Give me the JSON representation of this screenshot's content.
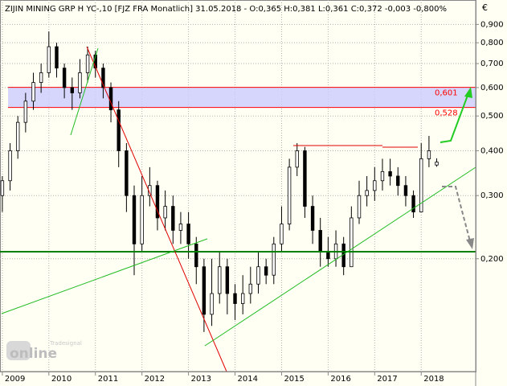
{
  "chart_data": {
    "type": "candlestick",
    "title": "ZIJIN MINING GRP H YC-,10 [FJZ FRA  Monatlich] 31.05.2018 - O:0,365 H:0,381 L:0,361 C:0,372 -0,003 -0,800%",
    "y_unit": "€",
    "log_scale": true,
    "grid": true,
    "up_color": "#ffffff",
    "down_color": "#000000",
    "x": [
      2009.0,
      2009.167,
      2009.333,
      2009.5,
      2009.667,
      2009.833,
      2010.0,
      2010.167,
      2010.333,
      2010.5,
      2010.667,
      2010.833,
      2011.0,
      2011.167,
      2011.333,
      2011.5,
      2011.667,
      2011.833,
      2012.0,
      2012.167,
      2012.333,
      2012.5,
      2012.667,
      2012.833,
      2013.0,
      2013.167,
      2013.333,
      2013.5,
      2013.667,
      2013.833,
      2014.0,
      2014.167,
      2014.333,
      2014.5,
      2014.667,
      2014.833,
      2015.0,
      2015.167,
      2015.333,
      2015.5,
      2015.667,
      2015.833,
      2016.0,
      2016.167,
      2016.333,
      2016.5,
      2016.667,
      2016.833,
      2017.0,
      2017.167,
      2017.333,
      2017.5,
      2017.667,
      2017.833,
      2018.0,
      2018.167,
      2018.333
    ],
    "open": [
      0.3,
      0.33,
      0.4,
      0.48,
      0.55,
      0.62,
      0.66,
      0.78,
      0.68,
      0.6,
      0.58,
      0.66,
      0.74,
      0.68,
      0.6,
      0.52,
      0.4,
      0.3,
      0.22,
      0.3,
      0.32,
      0.26,
      0.28,
      0.24,
      0.25,
      0.22,
      0.19,
      0.14,
      0.16,
      0.19,
      0.16,
      0.15,
      0.16,
      0.17,
      0.19,
      0.18,
      0.22,
      0.25,
      0.36,
      0.4,
      0.28,
      0.24,
      0.21,
      0.2,
      0.22,
      0.19,
      0.26,
      0.3,
      0.31,
      0.33,
      0.35,
      0.34,
      0.32,
      0.3,
      0.27,
      0.38,
      0.365
    ],
    "high": [
      0.34,
      0.42,
      0.5,
      0.58,
      0.66,
      0.7,
      0.86,
      0.8,
      0.7,
      0.64,
      0.72,
      0.78,
      0.76,
      0.7,
      0.62,
      0.55,
      0.42,
      0.32,
      0.34,
      0.36,
      0.33,
      0.31,
      0.3,
      0.27,
      0.27,
      0.23,
      0.2,
      0.2,
      0.21,
      0.2,
      0.17,
      0.18,
      0.19,
      0.21,
      0.2,
      0.23,
      0.28,
      0.38,
      0.42,
      0.41,
      0.3,
      0.26,
      0.23,
      0.24,
      0.23,
      0.28,
      0.33,
      0.34,
      0.36,
      0.38,
      0.38,
      0.36,
      0.34,
      0.31,
      0.42,
      0.44,
      0.381
    ],
    "low": [
      0.27,
      0.31,
      0.38,
      0.45,
      0.52,
      0.58,
      0.64,
      0.64,
      0.56,
      0.52,
      0.56,
      0.62,
      0.64,
      0.56,
      0.48,
      0.36,
      0.27,
      0.18,
      0.21,
      0.28,
      0.24,
      0.24,
      0.22,
      0.22,
      0.2,
      0.17,
      0.125,
      0.13,
      0.15,
      0.14,
      0.135,
      0.14,
      0.15,
      0.16,
      0.17,
      0.17,
      0.21,
      0.24,
      0.34,
      0.26,
      0.22,
      0.19,
      0.19,
      0.19,
      0.18,
      0.19,
      0.25,
      0.28,
      0.29,
      0.31,
      0.32,
      0.3,
      0.28,
      0.26,
      0.27,
      0.36,
      0.361
    ],
    "close": [
      0.33,
      0.4,
      0.48,
      0.55,
      0.62,
      0.66,
      0.78,
      0.68,
      0.6,
      0.58,
      0.66,
      0.74,
      0.68,
      0.6,
      0.52,
      0.4,
      0.3,
      0.22,
      0.3,
      0.32,
      0.26,
      0.28,
      0.24,
      0.25,
      0.22,
      0.19,
      0.14,
      0.16,
      0.19,
      0.16,
      0.15,
      0.16,
      0.17,
      0.19,
      0.18,
      0.22,
      0.25,
      0.36,
      0.4,
      0.28,
      0.24,
      0.21,
      0.2,
      0.22,
      0.19,
      0.26,
      0.3,
      0.31,
      0.33,
      0.35,
      0.34,
      0.32,
      0.3,
      0.27,
      0.38,
      0.4,
      0.372
    ],
    "xlim": [
      2008.95,
      2019.17
    ],
    "xticks": [
      2009,
      2010,
      2011,
      2012,
      2013,
      2014,
      2015,
      2016,
      2017,
      2018
    ],
    "ylim": [
      0.098,
      1.01
    ],
    "yticks": [
      {
        "value": 0.2,
        "label": "0,200"
      },
      {
        "value": 0.3,
        "label": "0,300"
      },
      {
        "value": 0.4,
        "label": "0,400"
      },
      {
        "value": 0.5,
        "label": "0,500"
      },
      {
        "value": 0.6,
        "label": "0,600"
      },
      {
        "value": 0.7,
        "label": "0,700"
      },
      {
        "value": 0.8,
        "label": "0,800"
      },
      {
        "value": 0.9,
        "label": "0,900"
      }
    ],
    "band": {
      "upper": 0.601,
      "lower": 0.528,
      "upper_label": "0,601",
      "lower_label": "0,528",
      "color": "#ff0000",
      "fill": "#ccccff"
    },
    "watermark": {
      "brand": "Tradesignal",
      "name": "online"
    }
  }
}
